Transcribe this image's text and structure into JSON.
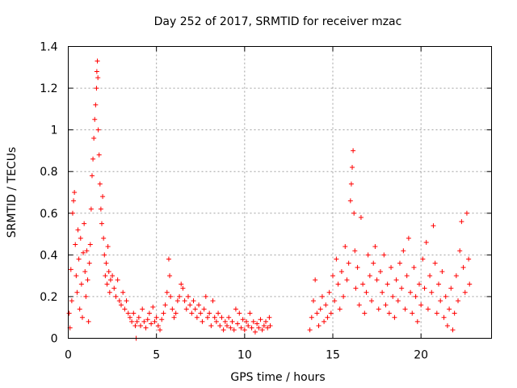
{
  "chart_data": {
    "type": "scatter",
    "title": "Day 252 of 2017, SRMTID for receiver mzac",
    "xlabel": "GPS time / hours",
    "ylabel": "SRMTID / TECUs",
    "xlim": [
      0,
      24
    ],
    "ylim": [
      0,
      1.4
    ],
    "xticks": [
      0,
      5,
      10,
      15,
      20
    ],
    "xtick_labels": [
      "0",
      "5",
      "10",
      "15",
      "20"
    ],
    "yticks": [
      0,
      0.2,
      0.4,
      0.6,
      0.8,
      1.0,
      1.2,
      1.4
    ],
    "ytick_labels": [
      "0",
      "0.2",
      "0.4",
      "0.6",
      "0.8",
      "1",
      "1.2",
      "1.4"
    ],
    "grid": true,
    "marker": "+",
    "series": [
      {
        "name": "SRMTID",
        "color": "#ff0000",
        "points": [
          [
            0.05,
            0.12
          ],
          [
            0.1,
            0.05
          ],
          [
            0.15,
            0.33
          ],
          [
            0.2,
            0.18
          ],
          [
            0.25,
            0.6
          ],
          [
            0.3,
            0.66
          ],
          [
            0.35,
            0.7
          ],
          [
            0.4,
            0.45
          ],
          [
            0.45,
            0.3
          ],
          [
            0.5,
            0.22
          ],
          [
            0.55,
            0.52
          ],
          [
            0.6,
            0.38
          ],
          [
            0.65,
            0.14
          ],
          [
            0.7,
            0.48
          ],
          [
            0.75,
            0.26
          ],
          [
            0.8,
            0.1
          ],
          [
            0.85,
            0.41
          ],
          [
            0.9,
            0.55
          ],
          [
            0.95,
            0.32
          ],
          [
            1.0,
            0.2
          ],
          [
            1.05,
            0.42
          ],
          [
            1.1,
            0.28
          ],
          [
            1.15,
            0.08
          ],
          [
            1.2,
            0.36
          ],
          [
            1.25,
            0.45
          ],
          [
            1.3,
            0.62
          ],
          [
            1.35,
            0.78
          ],
          [
            1.4,
            0.86
          ],
          [
            1.45,
            0.96
          ],
          [
            1.5,
            1.05
          ],
          [
            1.55,
            1.12
          ],
          [
            1.6,
            1.2
          ],
          [
            1.62,
            1.28
          ],
          [
            1.65,
            1.33
          ],
          [
            1.68,
            1.25
          ],
          [
            1.7,
            1.0
          ],
          [
            1.75,
            0.88
          ],
          [
            1.8,
            0.74
          ],
          [
            1.85,
            0.62
          ],
          [
            1.9,
            0.55
          ],
          [
            1.95,
            0.68
          ],
          [
            2.0,
            0.48
          ],
          [
            2.05,
            0.4
          ],
          [
            2.1,
            0.3
          ],
          [
            2.15,
            0.36
          ],
          [
            2.2,
            0.26
          ],
          [
            2.25,
            0.44
          ],
          [
            2.3,
            0.32
          ],
          [
            2.35,
            0.22
          ],
          [
            2.4,
            0.28
          ],
          [
            2.5,
            0.3
          ],
          [
            2.6,
            0.24
          ],
          [
            2.7,
            0.2
          ],
          [
            2.8,
            0.28
          ],
          [
            2.9,
            0.18
          ],
          [
            3.0,
            0.16
          ],
          [
            3.1,
            0.22
          ],
          [
            3.2,
            0.14
          ],
          [
            3.3,
            0.18
          ],
          [
            3.4,
            0.12
          ],
          [
            3.5,
            0.1
          ],
          [
            3.6,
            0.08
          ],
          [
            3.7,
            0.12
          ],
          [
            3.8,
            0.06
          ],
          [
            3.85,
            0.0
          ],
          [
            3.9,
            0.08
          ],
          [
            4.0,
            0.1
          ],
          [
            4.1,
            0.06
          ],
          [
            4.2,
            0.14
          ],
          [
            4.3,
            0.08
          ],
          [
            4.4,
            0.05
          ],
          [
            4.5,
            0.09
          ],
          [
            4.6,
            0.12
          ],
          [
            4.7,
            0.07
          ],
          [
            4.8,
            0.15
          ],
          [
            4.9,
            0.08
          ],
          [
            5.0,
            0.1
          ],
          [
            5.1,
            0.06
          ],
          [
            5.2,
            0.04
          ],
          [
            5.3,
            0.09
          ],
          [
            5.4,
            0.12
          ],
          [
            5.5,
            0.16
          ],
          [
            5.6,
            0.22
          ],
          [
            5.7,
            0.38
          ],
          [
            5.75,
            0.3
          ],
          [
            5.8,
            0.2
          ],
          [
            5.9,
            0.14
          ],
          [
            6.0,
            0.1
          ],
          [
            6.1,
            0.12
          ],
          [
            6.2,
            0.18
          ],
          [
            6.3,
            0.2
          ],
          [
            6.4,
            0.26
          ],
          [
            6.5,
            0.24
          ],
          [
            6.6,
            0.18
          ],
          [
            6.7,
            0.14
          ],
          [
            6.8,
            0.2
          ],
          [
            6.9,
            0.16
          ],
          [
            7.0,
            0.12
          ],
          [
            7.1,
            0.18
          ],
          [
            7.2,
            0.14
          ],
          [
            7.3,
            0.1
          ],
          [
            7.4,
            0.16
          ],
          [
            7.5,
            0.12
          ],
          [
            7.6,
            0.08
          ],
          [
            7.7,
            0.14
          ],
          [
            7.8,
            0.2
          ],
          [
            7.9,
            0.1
          ],
          [
            8.0,
            0.12
          ],
          [
            8.1,
            0.06
          ],
          [
            8.2,
            0.18
          ],
          [
            8.3,
            0.1
          ],
          [
            8.4,
            0.08
          ],
          [
            8.5,
            0.12
          ],
          [
            8.6,
            0.06
          ],
          [
            8.7,
            0.1
          ],
          [
            8.8,
            0.04
          ],
          [
            8.9,
            0.08
          ],
          [
            9.0,
            0.06
          ],
          [
            9.1,
            0.1
          ],
          [
            9.2,
            0.05
          ],
          [
            9.3,
            0.08
          ],
          [
            9.4,
            0.04
          ],
          [
            9.5,
            0.14
          ],
          [
            9.6,
            0.07
          ],
          [
            9.7,
            0.12
          ],
          [
            9.8,
            0.05
          ],
          [
            9.9,
            0.09
          ],
          [
            10.0,
            0.04
          ],
          [
            10.1,
            0.08
          ],
          [
            10.2,
            0.06
          ],
          [
            10.3,
            0.12
          ],
          [
            10.4,
            0.05
          ],
          [
            10.5,
            0.08
          ],
          [
            10.6,
            0.03
          ],
          [
            10.7,
            0.07
          ],
          [
            10.8,
            0.05
          ],
          [
            10.9,
            0.09
          ],
          [
            11.0,
            0.04
          ],
          [
            11.1,
            0.06
          ],
          [
            11.2,
            0.08
          ],
          [
            11.3,
            0.05
          ],
          [
            11.4,
            0.1
          ],
          [
            11.45,
            0.06
          ],
          [
            13.7,
            0.04
          ],
          [
            13.8,
            0.1
          ],
          [
            13.9,
            0.18
          ],
          [
            14.0,
            0.28
          ],
          [
            14.1,
            0.12
          ],
          [
            14.2,
            0.06
          ],
          [
            14.3,
            0.14
          ],
          [
            14.4,
            0.2
          ],
          [
            14.5,
            0.08
          ],
          [
            14.6,
            0.16
          ],
          [
            14.7,
            0.1
          ],
          [
            14.8,
            0.22
          ],
          [
            14.9,
            0.12
          ],
          [
            15.0,
            0.3
          ],
          [
            15.1,
            0.18
          ],
          [
            15.2,
            0.38
          ],
          [
            15.3,
            0.26
          ],
          [
            15.4,
            0.14
          ],
          [
            15.5,
            0.32
          ],
          [
            15.6,
            0.2
          ],
          [
            15.7,
            0.44
          ],
          [
            15.8,
            0.28
          ],
          [
            15.9,
            0.36
          ],
          [
            16.0,
            0.66
          ],
          [
            16.05,
            0.74
          ],
          [
            16.1,
            0.82
          ],
          [
            16.15,
            0.9
          ],
          [
            16.2,
            0.6
          ],
          [
            16.25,
            0.42
          ],
          [
            16.3,
            0.24
          ],
          [
            16.4,
            0.34
          ],
          [
            16.5,
            0.16
          ],
          [
            16.6,
            0.58
          ],
          [
            16.7,
            0.26
          ],
          [
            16.8,
            0.12
          ],
          [
            16.9,
            0.22
          ],
          [
            17.0,
            0.4
          ],
          [
            17.1,
            0.3
          ],
          [
            17.2,
            0.18
          ],
          [
            17.3,
            0.36
          ],
          [
            17.4,
            0.44
          ],
          [
            17.5,
            0.28
          ],
          [
            17.6,
            0.14
          ],
          [
            17.7,
            0.32
          ],
          [
            17.8,
            0.22
          ],
          [
            17.9,
            0.4
          ],
          [
            18.0,
            0.16
          ],
          [
            18.1,
            0.26
          ],
          [
            18.2,
            0.12
          ],
          [
            18.3,
            0.34
          ],
          [
            18.4,
            0.2
          ],
          [
            18.5,
            0.1
          ],
          [
            18.6,
            0.28
          ],
          [
            18.7,
            0.18
          ],
          [
            18.8,
            0.36
          ],
          [
            18.9,
            0.24
          ],
          [
            19.0,
            0.42
          ],
          [
            19.1,
            0.14
          ],
          [
            19.2,
            0.3
          ],
          [
            19.3,
            0.48
          ],
          [
            19.4,
            0.22
          ],
          [
            19.5,
            0.12
          ],
          [
            19.6,
            0.34
          ],
          [
            19.7,
            0.2
          ],
          [
            19.8,
            0.08
          ],
          [
            19.9,
            0.26
          ],
          [
            20.0,
            0.16
          ],
          [
            20.1,
            0.38
          ],
          [
            20.2,
            0.24
          ],
          [
            20.3,
            0.46
          ],
          [
            20.4,
            0.14
          ],
          [
            20.5,
            0.3
          ],
          [
            20.6,
            0.22
          ],
          [
            20.7,
            0.54
          ],
          [
            20.8,
            0.36
          ],
          [
            20.9,
            0.12
          ],
          [
            21.0,
            0.26
          ],
          [
            21.1,
            0.18
          ],
          [
            21.2,
            0.32
          ],
          [
            21.3,
            0.1
          ],
          [
            21.4,
            0.2
          ],
          [
            21.5,
            0.06
          ],
          [
            21.6,
            0.14
          ],
          [
            21.7,
            0.24
          ],
          [
            21.8,
            0.04
          ],
          [
            21.9,
            0.12
          ],
          [
            22.0,
            0.3
          ],
          [
            22.1,
            0.18
          ],
          [
            22.2,
            0.42
          ],
          [
            22.3,
            0.56
          ],
          [
            22.4,
            0.34
          ],
          [
            22.5,
            0.22
          ],
          [
            22.6,
            0.6
          ],
          [
            22.7,
            0.38
          ],
          [
            22.75,
            0.26
          ]
        ]
      }
    ]
  }
}
